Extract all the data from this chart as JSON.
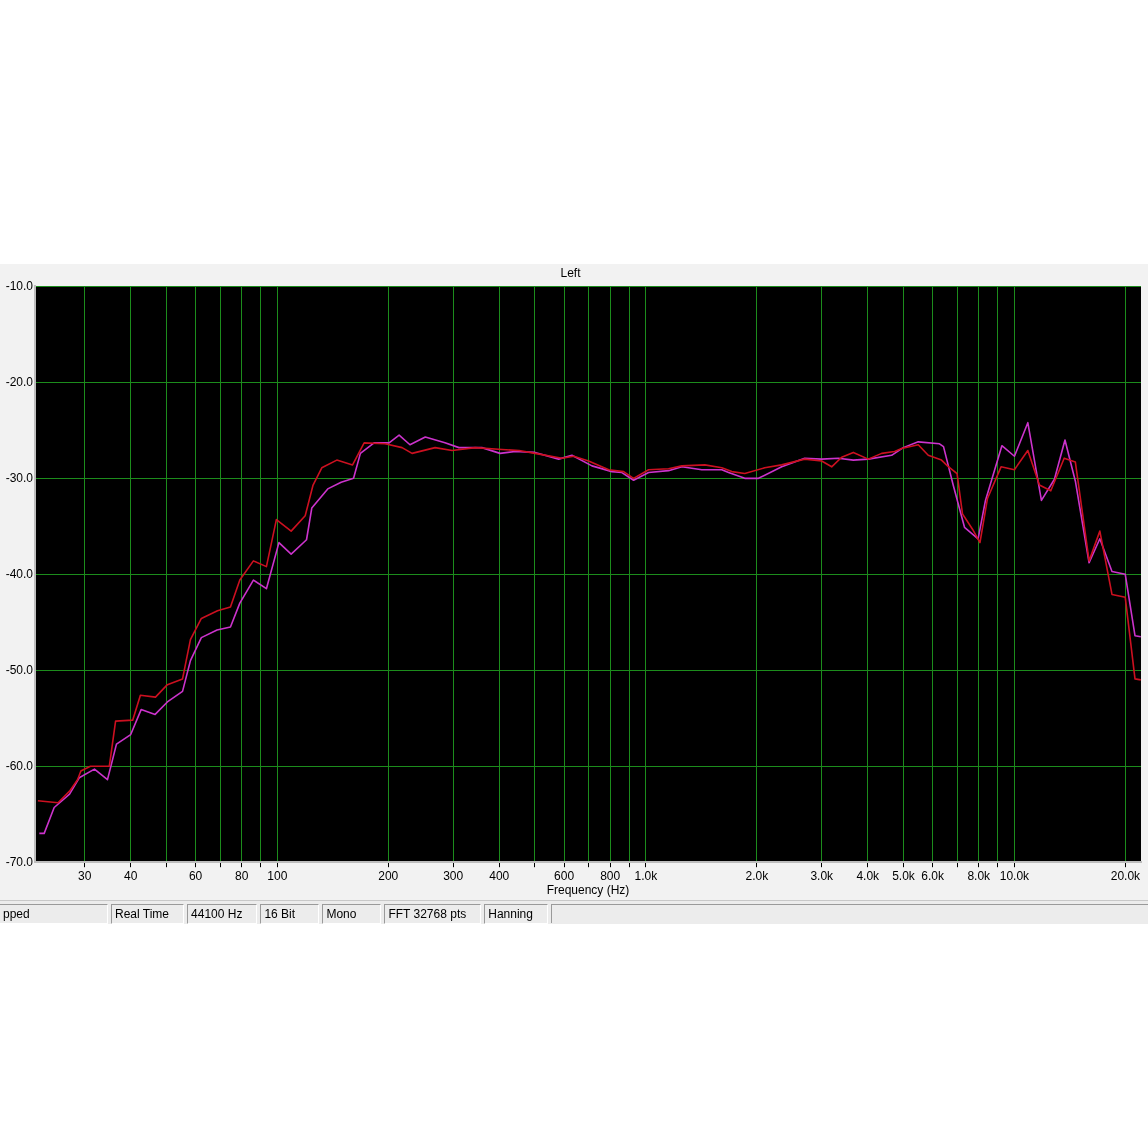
{
  "chart_data": {
    "type": "line",
    "title": "Left",
    "xlabel": "Frequency (Hz)",
    "log": "x",
    "grid": true,
    "legend": false,
    "xlim": [
      22,
      22050
    ],
    "xticks": [
      30,
      40,
      {
        "value": 50,
        "label": null
      },
      60,
      {
        "value": 70,
        "label": null
      },
      80,
      {
        "value": 90,
        "label": null
      },
      100,
      200,
      300,
      400,
      {
        "value": 500,
        "label": null
      },
      600,
      {
        "value": 700,
        "label": null
      },
      800,
      {
        "value": 900,
        "label": null
      },
      {
        "value": 1000,
        "label": "1.0k"
      },
      {
        "value": 2000,
        "label": "2.0k"
      },
      {
        "value": 3000,
        "label": "3.0k"
      },
      {
        "value": 4000,
        "label": "4.0k"
      },
      {
        "value": 5000,
        "label": "5.0k"
      },
      {
        "value": 6000,
        "label": "6.0k"
      },
      {
        "value": 7000,
        "label": null
      },
      {
        "value": 8000,
        "label": "8.0k"
      },
      {
        "value": 9000,
        "label": null
      },
      {
        "value": 10000,
        "label": "10.0k"
      },
      {
        "value": 20000,
        "label": "20.0k"
      }
    ],
    "ylim": [
      -70,
      -10
    ],
    "yticks": [
      {
        "value": -10,
        "label": "-10.0"
      },
      {
        "value": -20,
        "label": "-20.0"
      },
      {
        "value": -30,
        "label": "-30.0"
      },
      {
        "value": -40,
        "label": "-40.0"
      },
      {
        "value": -50,
        "label": "-50.0"
      },
      {
        "value": -60,
        "label": "-60.0"
      },
      {
        "value": -70,
        "label": "-70.0"
      }
    ],
    "series": [
      {
        "color": "#cc1020",
        "x": [
          22.4,
          25.4,
          27.3,
          28.7,
          29.3,
          31.1,
          35.0,
          36.4,
          40.5,
          42.5,
          46.7,
          50.3,
          55.3,
          58.1,
          62.2,
          68.8,
          74.6,
          79.1,
          86.1,
          93.4,
          99.4,
          109,
          119,
          125,
          132,
          145,
          160,
          172,
          196,
          218,
          232,
          268,
          298,
          344,
          407,
          453,
          500,
          592,
          637,
          699,
          793,
          870,
          926,
          1017,
          1152,
          1252,
          1445,
          1607,
          1711,
          1855,
          2101,
          2336,
          2697,
          2999,
          3192,
          3398,
          3655,
          4013,
          4362,
          4730,
          4941,
          5483,
          5836,
          6341,
          6580,
          6987,
          7228,
          7695,
          8062,
          8450,
          9198,
          10000,
          10872,
          11690,
          12549,
          13645,
          14633,
          15944,
          17050,
          18394,
          19984,
          21237,
          22018
        ],
        "values": [
          -63.6,
          -63.8,
          -62.6,
          -61.4,
          -60.5,
          -60.0,
          -60.0,
          -55.3,
          -55.2,
          -52.6,
          -52.8,
          -51.5,
          -50.9,
          -46.8,
          -44.6,
          -43.8,
          -43.4,
          -40.6,
          -38.6,
          -39.2,
          -34.3,
          -35.5,
          -33.9,
          -30.7,
          -28.9,
          -28.1,
          -28.6,
          -26.3,
          -26.4,
          -26.8,
          -27.4,
          -26.8,
          -27.1,
          -26.8,
          -27.0,
          -27.1,
          -27.4,
          -27.9,
          -27.7,
          -28.2,
          -29.1,
          -29.3,
          -30.0,
          -29.1,
          -29.0,
          -28.7,
          -28.6,
          -28.9,
          -29.3,
          -29.5,
          -28.9,
          -28.6,
          -28.0,
          -28.2,
          -28.8,
          -27.8,
          -27.3,
          -28.0,
          -27.4,
          -27.2,
          -26.9,
          -26.5,
          -27.6,
          -28.1,
          -28.7,
          -29.5,
          -33.7,
          -35.3,
          -36.7,
          -32.1,
          -28.8,
          -29.1,
          -27.1,
          -30.7,
          -31.3,
          -27.9,
          -28.3,
          -38.6,
          -35.5,
          -42.1,
          -42.4,
          -50.9,
          -51.0
        ]
      },
      {
        "color": "#cc33cc",
        "x": [
          22.6,
          23.3,
          24.8,
          27.3,
          29.0,
          31.9,
          34.6,
          36.6,
          40.0,
          42.7,
          46.6,
          50.3,
          55.3,
          58.1,
          62.2,
          68.6,
          74.6,
          79.1,
          86.1,
          93.4,
          101,
          109,
          120,
          124,
          137,
          149,
          161,
          168,
          183,
          201,
          214,
          229,
          252,
          285,
          311,
          359,
          402,
          442,
          500,
          580,
          630,
          714,
          809,
          861,
          926,
          1017,
          1152,
          1252,
          1418,
          1607,
          1676,
          1855,
          2020,
          2336,
          2697,
          2999,
          3329,
          3655,
          4013,
          4642,
          4993,
          5483,
          6261,
          6420,
          6820,
          7320,
          7968,
          8345,
          9246,
          10000,
          10872,
          11836,
          12838,
          13713,
          14633,
          15944,
          17050,
          18394,
          19984,
          21237,
          22018
        ],
        "values": [
          -67.0,
          -67.0,
          -64.3,
          -62.9,
          -61.2,
          -60.3,
          -61.4,
          -57.7,
          -56.7,
          -54.1,
          -54.6,
          -53.3,
          -52.2,
          -49.0,
          -46.6,
          -45.8,
          -45.5,
          -43.0,
          -40.6,
          -41.5,
          -36.7,
          -37.9,
          -36.4,
          -33.1,
          -31.1,
          -30.4,
          -30.0,
          -27.4,
          -26.3,
          -26.3,
          -25.5,
          -26.5,
          -25.7,
          -26.3,
          -26.8,
          -26.8,
          -27.4,
          -27.2,
          -27.3,
          -28.0,
          -27.6,
          -28.7,
          -29.3,
          -29.4,
          -30.2,
          -29.4,
          -29.2,
          -28.8,
          -29.1,
          -29.1,
          -29.4,
          -30.0,
          -30.0,
          -28.8,
          -27.9,
          -28.0,
          -27.9,
          -28.1,
          -28.0,
          -27.6,
          -26.8,
          -26.2,
          -26.4,
          -26.7,
          -30.7,
          -35.1,
          -36.3,
          -32.3,
          -26.6,
          -27.7,
          -24.2,
          -32.3,
          -30.1,
          -26.0,
          -30.3,
          -38.8,
          -36.3,
          -39.7,
          -40.0,
          -46.4,
          -46.5
        ]
      }
    ],
    "annotations": [
      "pped",
      "Real Time",
      "44100 Hz",
      "16 Bit",
      "Mono",
      "FFT 32768 pts",
      "Hanning"
    ]
  }
}
